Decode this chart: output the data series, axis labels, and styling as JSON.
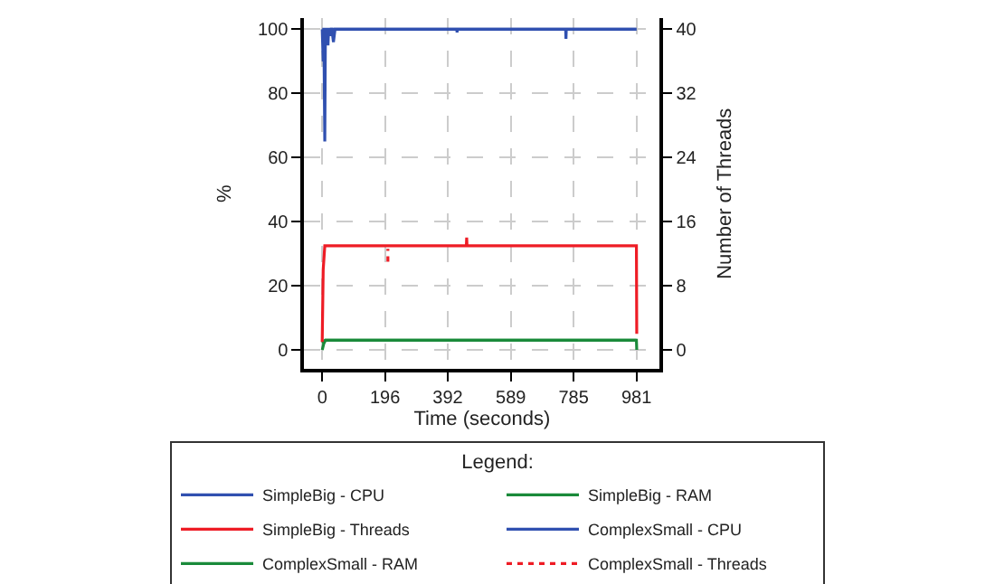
{
  "chart_data": {
    "type": "line",
    "xlabel": "Time (seconds)",
    "ylabel": "%",
    "y2label": "Number of Threads",
    "legend_title": "Legend:",
    "legend": "bottom",
    "grid": true,
    "line_style": "solid",
    "marker": "none",
    "xlim": [
      -56,
      1054
    ],
    "xticks": [
      0,
      196,
      392,
      589,
      785,
      981
    ],
    "ylim": [
      -6,
      103.5
    ],
    "yticks": [
      0,
      20,
      40,
      60,
      80,
      100
    ],
    "y2lim": [
      -2.4,
      41.4
    ],
    "y2ticks": [
      0,
      8,
      16,
      24,
      32,
      40
    ],
    "series": [
      {
        "name": "SimpleBig - CPU",
        "color": "#3050b0",
        "x": [
          0,
          3,
          5,
          8,
          10,
          12,
          15,
          18,
          20,
          25,
          28,
          30,
          35,
          40,
          420,
          421,
          422,
          760,
          761,
          762,
          981
        ],
        "values": [
          100,
          90,
          100,
          65,
          100,
          97,
          100,
          95,
          100,
          98,
          100,
          100,
          96,
          100,
          100,
          99,
          100,
          100,
          97,
          100,
          100
        ]
      },
      {
        "name": "SimpleBig - RAM",
        "color": "#1a8a3a",
        "x": [
          0,
          5,
          10,
          981,
          982
        ],
        "values": [
          0,
          2,
          3,
          3,
          0
        ]
      },
      {
        "name": "SimpleBig - Threads",
        "color": "#ee1c25",
        "axis": "y2",
        "x": [
          0,
          3,
          8,
          450,
          451,
          452,
          981,
          982
        ],
        "values": [
          1,
          10,
          13,
          13,
          14,
          13,
          13,
          2
        ]
      },
      {
        "name": "ComplexSmall - CPU",
        "color": "#3050b0",
        "x": [
          0,
          5,
          10,
          30,
          981
        ],
        "values": [
          100,
          100,
          100,
          100,
          100
        ]
      },
      {
        "name": "ComplexSmall - RAM",
        "color": "#1a8a3a",
        "x": [
          0,
          10,
          981
        ],
        "values": [
          2,
          3,
          3
        ]
      },
      {
        "name": "ComplexSmall - Threads",
        "color": "#ee1c25",
        "axis": "y2",
        "line_style": "dotted",
        "x": [
          205,
          205
        ],
        "values": [
          11,
          12.6
        ]
      }
    ]
  }
}
